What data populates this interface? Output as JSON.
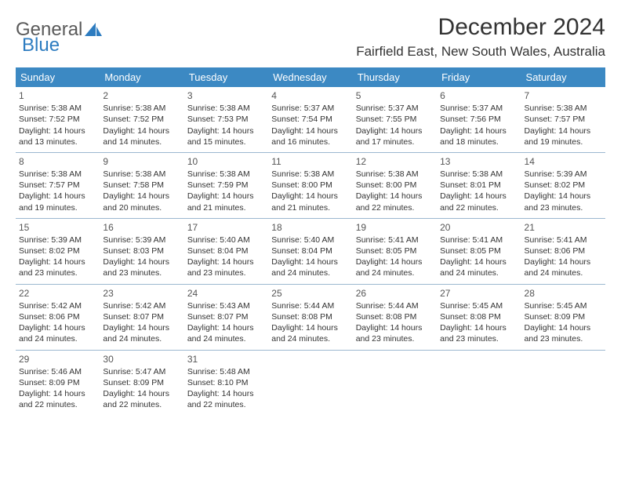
{
  "logo": {
    "text1": "General",
    "text2": "Blue"
  },
  "title": "December 2024",
  "location": "Fairfield East, New South Wales, Australia",
  "colors": {
    "header_bg": "#3c89c3",
    "header_text": "#ffffff",
    "rule": "#9cb8d0",
    "logo_blue": "#2d7cc0"
  },
  "day_headers": [
    "Sunday",
    "Monday",
    "Tuesday",
    "Wednesday",
    "Thursday",
    "Friday",
    "Saturday"
  ],
  "weeks": [
    [
      {
        "n": "1",
        "sr": "Sunrise: 5:38 AM",
        "ss": "Sunset: 7:52 PM",
        "dl": "Daylight: 14 hours and 13 minutes."
      },
      {
        "n": "2",
        "sr": "Sunrise: 5:38 AM",
        "ss": "Sunset: 7:52 PM",
        "dl": "Daylight: 14 hours and 14 minutes."
      },
      {
        "n": "3",
        "sr": "Sunrise: 5:38 AM",
        "ss": "Sunset: 7:53 PM",
        "dl": "Daylight: 14 hours and 15 minutes."
      },
      {
        "n": "4",
        "sr": "Sunrise: 5:37 AM",
        "ss": "Sunset: 7:54 PM",
        "dl": "Daylight: 14 hours and 16 minutes."
      },
      {
        "n": "5",
        "sr": "Sunrise: 5:37 AM",
        "ss": "Sunset: 7:55 PM",
        "dl": "Daylight: 14 hours and 17 minutes."
      },
      {
        "n": "6",
        "sr": "Sunrise: 5:37 AM",
        "ss": "Sunset: 7:56 PM",
        "dl": "Daylight: 14 hours and 18 minutes."
      },
      {
        "n": "7",
        "sr": "Sunrise: 5:38 AM",
        "ss": "Sunset: 7:57 PM",
        "dl": "Daylight: 14 hours and 19 minutes."
      }
    ],
    [
      {
        "n": "8",
        "sr": "Sunrise: 5:38 AM",
        "ss": "Sunset: 7:57 PM",
        "dl": "Daylight: 14 hours and 19 minutes."
      },
      {
        "n": "9",
        "sr": "Sunrise: 5:38 AM",
        "ss": "Sunset: 7:58 PM",
        "dl": "Daylight: 14 hours and 20 minutes."
      },
      {
        "n": "10",
        "sr": "Sunrise: 5:38 AM",
        "ss": "Sunset: 7:59 PM",
        "dl": "Daylight: 14 hours and 21 minutes."
      },
      {
        "n": "11",
        "sr": "Sunrise: 5:38 AM",
        "ss": "Sunset: 8:00 PM",
        "dl": "Daylight: 14 hours and 21 minutes."
      },
      {
        "n": "12",
        "sr": "Sunrise: 5:38 AM",
        "ss": "Sunset: 8:00 PM",
        "dl": "Daylight: 14 hours and 22 minutes."
      },
      {
        "n": "13",
        "sr": "Sunrise: 5:38 AM",
        "ss": "Sunset: 8:01 PM",
        "dl": "Daylight: 14 hours and 22 minutes."
      },
      {
        "n": "14",
        "sr": "Sunrise: 5:39 AM",
        "ss": "Sunset: 8:02 PM",
        "dl": "Daylight: 14 hours and 23 minutes."
      }
    ],
    [
      {
        "n": "15",
        "sr": "Sunrise: 5:39 AM",
        "ss": "Sunset: 8:02 PM",
        "dl": "Daylight: 14 hours and 23 minutes."
      },
      {
        "n": "16",
        "sr": "Sunrise: 5:39 AM",
        "ss": "Sunset: 8:03 PM",
        "dl": "Daylight: 14 hours and 23 minutes."
      },
      {
        "n": "17",
        "sr": "Sunrise: 5:40 AM",
        "ss": "Sunset: 8:04 PM",
        "dl": "Daylight: 14 hours and 23 minutes."
      },
      {
        "n": "18",
        "sr": "Sunrise: 5:40 AM",
        "ss": "Sunset: 8:04 PM",
        "dl": "Daylight: 14 hours and 24 minutes."
      },
      {
        "n": "19",
        "sr": "Sunrise: 5:41 AM",
        "ss": "Sunset: 8:05 PM",
        "dl": "Daylight: 14 hours and 24 minutes."
      },
      {
        "n": "20",
        "sr": "Sunrise: 5:41 AM",
        "ss": "Sunset: 8:05 PM",
        "dl": "Daylight: 14 hours and 24 minutes."
      },
      {
        "n": "21",
        "sr": "Sunrise: 5:41 AM",
        "ss": "Sunset: 8:06 PM",
        "dl": "Daylight: 14 hours and 24 minutes."
      }
    ],
    [
      {
        "n": "22",
        "sr": "Sunrise: 5:42 AM",
        "ss": "Sunset: 8:06 PM",
        "dl": "Daylight: 14 hours and 24 minutes."
      },
      {
        "n": "23",
        "sr": "Sunrise: 5:42 AM",
        "ss": "Sunset: 8:07 PM",
        "dl": "Daylight: 14 hours and 24 minutes."
      },
      {
        "n": "24",
        "sr": "Sunrise: 5:43 AM",
        "ss": "Sunset: 8:07 PM",
        "dl": "Daylight: 14 hours and 24 minutes."
      },
      {
        "n": "25",
        "sr": "Sunrise: 5:44 AM",
        "ss": "Sunset: 8:08 PM",
        "dl": "Daylight: 14 hours and 24 minutes."
      },
      {
        "n": "26",
        "sr": "Sunrise: 5:44 AM",
        "ss": "Sunset: 8:08 PM",
        "dl": "Daylight: 14 hours and 23 minutes."
      },
      {
        "n": "27",
        "sr": "Sunrise: 5:45 AM",
        "ss": "Sunset: 8:08 PM",
        "dl": "Daylight: 14 hours and 23 minutes."
      },
      {
        "n": "28",
        "sr": "Sunrise: 5:45 AM",
        "ss": "Sunset: 8:09 PM",
        "dl": "Daylight: 14 hours and 23 minutes."
      }
    ],
    [
      {
        "n": "29",
        "sr": "Sunrise: 5:46 AM",
        "ss": "Sunset: 8:09 PM",
        "dl": "Daylight: 14 hours and 22 minutes."
      },
      {
        "n": "30",
        "sr": "Sunrise: 5:47 AM",
        "ss": "Sunset: 8:09 PM",
        "dl": "Daylight: 14 hours and 22 minutes."
      },
      {
        "n": "31",
        "sr": "Sunrise: 5:48 AM",
        "ss": "Sunset: 8:10 PM",
        "dl": "Daylight: 14 hours and 22 minutes."
      },
      null,
      null,
      null,
      null
    ]
  ]
}
